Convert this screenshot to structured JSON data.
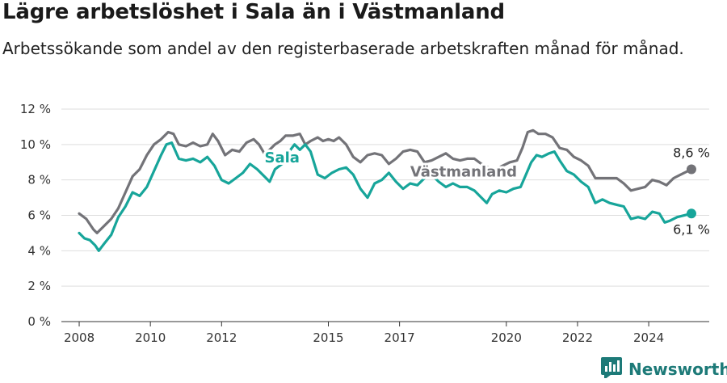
{
  "title": "Lägre arbetslöshet i Sala än i Västmanland",
  "subtitle": "Arbetssökande som andel av den registerbaserade arbetskraften månad för månad.",
  "brand": {
    "name": "Newsworthy"
  },
  "colors": {
    "sala": "#17a59a",
    "vastmanland": "#737378",
    "grid": "#dddddd",
    "axis": "#333333"
  },
  "chart_data": {
    "type": "line",
    "x_ticks": [
      "2008",
      "2010",
      "2012",
      "2015",
      "2017",
      "2020",
      "2022",
      "2024"
    ],
    "y_ticks": [
      "0 %",
      "2 %",
      "4 %",
      "6 %",
      "8 %",
      "10 %",
      "12 %"
    ],
    "ylim": [
      0,
      12
    ],
    "xlim": [
      2007.5,
      2025.7
    ],
    "grid": true,
    "series": [
      {
        "name": "Västmanland",
        "end_label": "8,6 %",
        "points": [
          [
            2008.0,
            6.1
          ],
          [
            2008.2,
            5.8
          ],
          [
            2008.4,
            5.2
          ],
          [
            2008.5,
            5.0
          ],
          [
            2008.7,
            5.4
          ],
          [
            2008.9,
            5.8
          ],
          [
            2009.1,
            6.4
          ],
          [
            2009.3,
            7.3
          ],
          [
            2009.5,
            8.2
          ],
          [
            2009.7,
            8.6
          ],
          [
            2009.9,
            9.4
          ],
          [
            2010.1,
            10.0
          ],
          [
            2010.3,
            10.3
          ],
          [
            2010.5,
            10.7
          ],
          [
            2010.65,
            10.6
          ],
          [
            2010.8,
            10.0
          ],
          [
            2011.0,
            9.9
          ],
          [
            2011.2,
            10.1
          ],
          [
            2011.4,
            9.9
          ],
          [
            2011.6,
            10.0
          ],
          [
            2011.75,
            10.6
          ],
          [
            2011.9,
            10.2
          ],
          [
            2012.1,
            9.4
          ],
          [
            2012.3,
            9.7
          ],
          [
            2012.5,
            9.6
          ],
          [
            2012.7,
            10.1
          ],
          [
            2012.9,
            10.3
          ],
          [
            2013.05,
            10.0
          ],
          [
            2013.2,
            9.5
          ],
          [
            2013.35,
            9.7
          ],
          [
            2013.5,
            10.0
          ],
          [
            2013.65,
            10.2
          ],
          [
            2013.8,
            10.5
          ],
          [
            2014.0,
            10.5
          ],
          [
            2014.2,
            10.6
          ],
          [
            2014.35,
            10.0
          ],
          [
            2014.5,
            10.2
          ],
          [
            2014.7,
            10.4
          ],
          [
            2014.85,
            10.2
          ],
          [
            2015.0,
            10.3
          ],
          [
            2015.15,
            10.2
          ],
          [
            2015.3,
            10.4
          ],
          [
            2015.5,
            10.0
          ],
          [
            2015.7,
            9.3
          ],
          [
            2015.9,
            9.0
          ],
          [
            2016.1,
            9.4
          ],
          [
            2016.3,
            9.5
          ],
          [
            2016.5,
            9.4
          ],
          [
            2016.7,
            8.9
          ],
          [
            2016.9,
            9.2
          ],
          [
            2017.1,
            9.6
          ],
          [
            2017.3,
            9.7
          ],
          [
            2017.5,
            9.6
          ],
          [
            2017.7,
            9.0
          ],
          [
            2017.9,
            9.1
          ],
          [
            2018.1,
            9.3
          ],
          [
            2018.3,
            9.5
          ],
          [
            2018.5,
            9.2
          ],
          [
            2018.7,
            9.1
          ],
          [
            2018.9,
            9.2
          ],
          [
            2019.1,
            9.2
          ],
          [
            2019.3,
            8.9
          ],
          [
            2019.5,
            8.7
          ],
          [
            2019.7,
            8.6
          ],
          [
            2019.9,
            8.8
          ],
          [
            2020.1,
            9.0
          ],
          [
            2020.3,
            9.1
          ],
          [
            2020.45,
            9.8
          ],
          [
            2020.6,
            10.7
          ],
          [
            2020.75,
            10.8
          ],
          [
            2020.9,
            10.6
          ],
          [
            2021.1,
            10.6
          ],
          [
            2021.3,
            10.4
          ],
          [
            2021.5,
            9.8
          ],
          [
            2021.7,
            9.7
          ],
          [
            2021.9,
            9.3
          ],
          [
            2022.1,
            9.1
          ],
          [
            2022.3,
            8.8
          ],
          [
            2022.5,
            8.1
          ],
          [
            2022.7,
            8.1
          ],
          [
            2022.9,
            8.1
          ],
          [
            2023.1,
            8.1
          ],
          [
            2023.3,
            7.8
          ],
          [
            2023.5,
            7.4
          ],
          [
            2023.7,
            7.5
          ],
          [
            2023.9,
            7.6
          ],
          [
            2024.1,
            8.0
          ],
          [
            2024.3,
            7.9
          ],
          [
            2024.5,
            7.7
          ],
          [
            2024.7,
            8.1
          ],
          [
            2024.9,
            8.3
          ],
          [
            2025.2,
            8.6
          ]
        ]
      },
      {
        "name": "Sala",
        "end_label": "6,1 %",
        "points": [
          [
            2008.0,
            5.0
          ],
          [
            2008.15,
            4.7
          ],
          [
            2008.3,
            4.6
          ],
          [
            2008.45,
            4.3
          ],
          [
            2008.55,
            4.0
          ],
          [
            2008.7,
            4.4
          ],
          [
            2008.9,
            4.9
          ],
          [
            2009.1,
            5.9
          ],
          [
            2009.3,
            6.5
          ],
          [
            2009.5,
            7.3
          ],
          [
            2009.7,
            7.1
          ],
          [
            2009.9,
            7.6
          ],
          [
            2010.1,
            8.5
          ],
          [
            2010.3,
            9.4
          ],
          [
            2010.45,
            10.0
          ],
          [
            2010.6,
            10.1
          ],
          [
            2010.8,
            9.2
          ],
          [
            2011.0,
            9.1
          ],
          [
            2011.2,
            9.2
          ],
          [
            2011.4,
            9.0
          ],
          [
            2011.6,
            9.3
          ],
          [
            2011.8,
            8.8
          ],
          [
            2012.0,
            8.0
          ],
          [
            2012.2,
            7.8
          ],
          [
            2012.4,
            8.1
          ],
          [
            2012.6,
            8.4
          ],
          [
            2012.8,
            8.9
          ],
          [
            2013.0,
            8.6
          ],
          [
            2013.2,
            8.2
          ],
          [
            2013.35,
            7.9
          ],
          [
            2013.5,
            8.6
          ],
          [
            2013.7,
            8.9
          ],
          [
            2013.9,
            9.6
          ],
          [
            2014.05,
            10.0
          ],
          [
            2014.2,
            9.7
          ],
          [
            2014.35,
            10.0
          ],
          [
            2014.5,
            9.6
          ],
          [
            2014.7,
            8.3
          ],
          [
            2014.9,
            8.1
          ],
          [
            2015.1,
            8.4
          ],
          [
            2015.3,
            8.6
          ],
          [
            2015.5,
            8.7
          ],
          [
            2015.7,
            8.3
          ],
          [
            2015.9,
            7.5
          ],
          [
            2016.1,
            7.0
          ],
          [
            2016.3,
            7.8
          ],
          [
            2016.5,
            8.0
          ],
          [
            2016.7,
            8.4
          ],
          [
            2016.9,
            7.9
          ],
          [
            2017.1,
            7.5
          ],
          [
            2017.3,
            7.8
          ],
          [
            2017.5,
            7.7
          ],
          [
            2017.7,
            8.1
          ],
          [
            2017.9,
            8.3
          ],
          [
            2018.1,
            7.9
          ],
          [
            2018.3,
            7.6
          ],
          [
            2018.5,
            7.8
          ],
          [
            2018.7,
            7.6
          ],
          [
            2018.9,
            7.6
          ],
          [
            2019.1,
            7.4
          ],
          [
            2019.3,
            7.0
          ],
          [
            2019.45,
            6.7
          ],
          [
            2019.6,
            7.2
          ],
          [
            2019.8,
            7.4
          ],
          [
            2020.0,
            7.3
          ],
          [
            2020.2,
            7.5
          ],
          [
            2020.4,
            7.6
          ],
          [
            2020.55,
            8.3
          ],
          [
            2020.7,
            9.0
          ],
          [
            2020.85,
            9.4
          ],
          [
            2021.0,
            9.3
          ],
          [
            2021.2,
            9.5
          ],
          [
            2021.35,
            9.6
          ],
          [
            2021.5,
            9.1
          ],
          [
            2021.7,
            8.5
          ],
          [
            2021.9,
            8.3
          ],
          [
            2022.1,
            7.9
          ],
          [
            2022.3,
            7.6
          ],
          [
            2022.5,
            6.7
          ],
          [
            2022.7,
            6.9
          ],
          [
            2022.9,
            6.7
          ],
          [
            2023.1,
            6.6
          ],
          [
            2023.3,
            6.5
          ],
          [
            2023.5,
            5.8
          ],
          [
            2023.7,
            5.9
          ],
          [
            2023.9,
            5.8
          ],
          [
            2024.1,
            6.2
          ],
          [
            2024.3,
            6.1
          ],
          [
            2024.45,
            5.6
          ],
          [
            2024.6,
            5.7
          ],
          [
            2024.8,
            5.9
          ],
          [
            2025.2,
            6.1
          ]
        ]
      }
    ],
    "labels": [
      {
        "text": "Sala",
        "x": 2013.7,
        "y": 9.0,
        "series": "Sala"
      },
      {
        "text": "Västmanland",
        "x": 2018.8,
        "y": 8.2,
        "series": "Västmanland"
      }
    ]
  }
}
